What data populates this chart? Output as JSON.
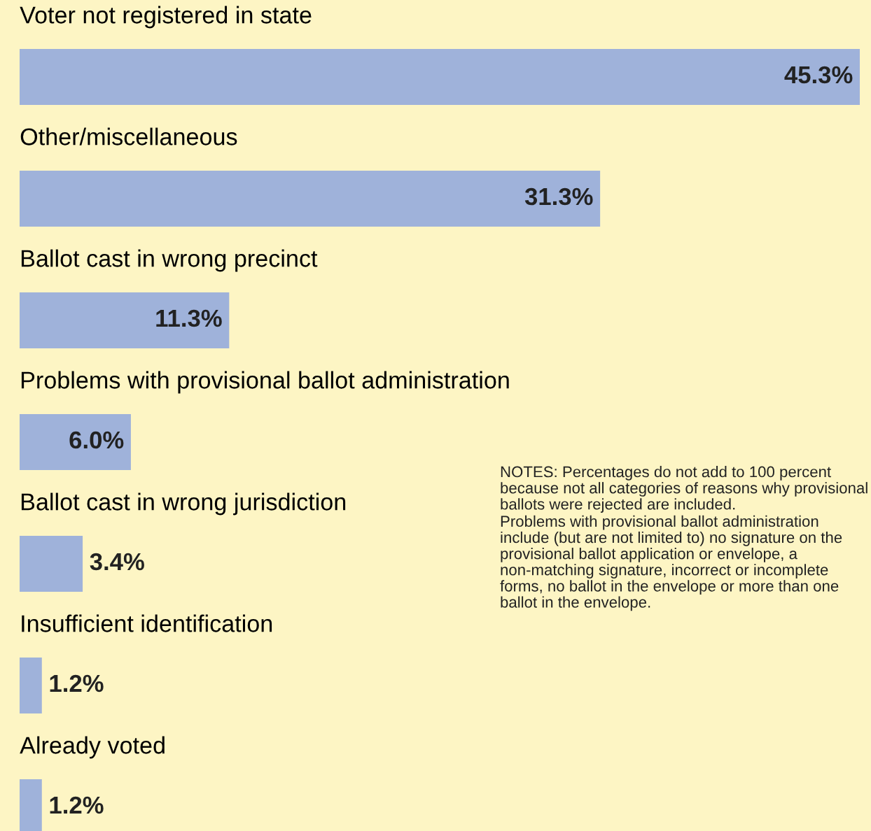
{
  "chart_data": {
    "type": "bar",
    "orientation": "horizontal",
    "categories": [
      "Voter not registered in state",
      "Other/miscellaneous",
      "Ballot cast in wrong precinct",
      "Problems with provisional ballot administration",
      "Ballot cast in wrong jurisdiction",
      "Insufficient identification",
      "Already voted"
    ],
    "values": [
      45.3,
      31.3,
      11.3,
      6.0,
      3.4,
      1.2,
      1.2
    ],
    "value_labels": [
      "45.3%",
      "31.3%",
      "11.3%",
      "6.0%",
      "3.4%",
      "1.2%",
      "1.2%"
    ],
    "color": "#9fb2da",
    "annotations": [
      "NOTES: Percentages do not add to 100 percent because not all categories of reasons why provisional ballots were rejected are included.",
      "Problems with provisional ballot administration include (but are not limited to) no signature on the provisional ballot application or envelope, a non-matching signature, incorrect or incomplete forms, no ballot in the envelope or more than one ballot in the envelope."
    ],
    "legend": false
  }
}
